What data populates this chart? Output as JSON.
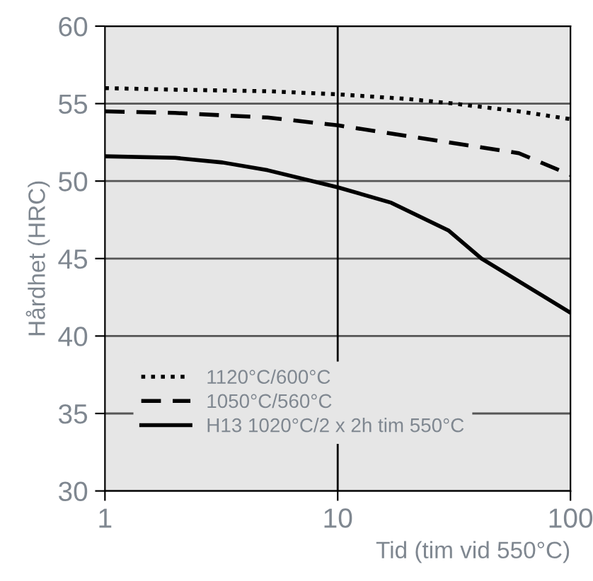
{
  "chart_data": {
    "type": "line",
    "xlabel": "Tid (tim vid 550°C)",
    "ylabel": "Hårdhet (HRC)",
    "xlim": [
      1,
      100
    ],
    "xticks": [
      1,
      10,
      100
    ],
    "ylim": [
      30,
      60
    ],
    "yticks": [
      30,
      35,
      40,
      45,
      50,
      55,
      60
    ],
    "log": "x",
    "grid": "y",
    "ref_lines": [
      {
        "axis": "x",
        "value": 10,
        "color": "#000000"
      }
    ],
    "legend": "bottom left",
    "series": [
      {
        "name": "1120°C/600°C",
        "color": "#000000",
        "line_style": "dotted",
        "x": [
          1,
          2,
          5,
          10,
          20,
          31.6,
          60,
          100
        ],
        "values": [
          56.0,
          55.9,
          55.8,
          55.6,
          55.3,
          55.0,
          54.5,
          54.0
        ]
      },
      {
        "name": "1050°C/560°C",
        "color": "#000000",
        "line_style": "dashed",
        "x": [
          1,
          2,
          5,
          10,
          20,
          30,
          60,
          100
        ],
        "values": [
          54.5,
          54.4,
          54.1,
          53.6,
          52.9,
          52.5,
          51.8,
          50.4
        ]
      },
      {
        "name": "H13 1020°C/2 x 2h tim 550°C",
        "color": "#000000",
        "line_style": "solid",
        "x": [
          1,
          2,
          3.2,
          5,
          10,
          17,
          30,
          41.5,
          100
        ],
        "values": [
          51.6,
          51.5,
          51.2,
          50.7,
          49.6,
          48.6,
          46.8,
          45.0,
          41.5
        ]
      }
    ]
  }
}
